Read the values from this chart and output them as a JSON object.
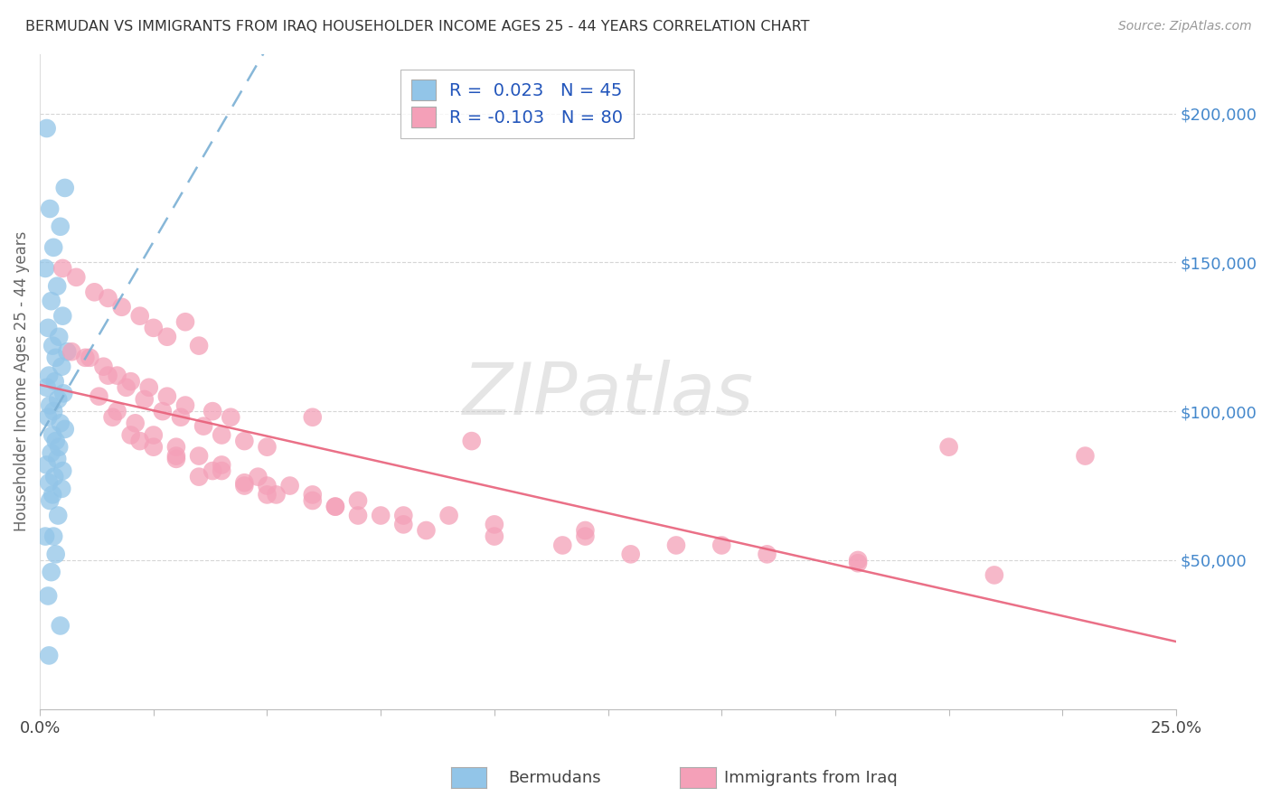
{
  "title": "BERMUDAN VS IMMIGRANTS FROM IRAQ HOUSEHOLDER INCOME AGES 25 - 44 YEARS CORRELATION CHART",
  "source": "Source: ZipAtlas.com",
  "ylabel": "Householder Income Ages 25 - 44 years",
  "right_yticks": [
    50000,
    100000,
    150000,
    200000
  ],
  "right_yticklabels": [
    "$50,000",
    "$100,000",
    "$150,000",
    "$200,000"
  ],
  "xlim": [
    0.0,
    25.0
  ],
  "ylim": [
    0,
    220000
  ],
  "bermuda_R": 0.023,
  "bermuda_N": 45,
  "iraq_R": -0.103,
  "iraq_N": 80,
  "bermuda_color": "#92C5E8",
  "iraq_color": "#F4A0B8",
  "bermuda_line_color": "#7AAFD4",
  "iraq_line_color": "#E8607A",
  "watermark": "ZIPatlas",
  "legend_bermuda_label": "Bermudans",
  "legend_iraq_label": "Immigrants from Iraq",
  "bermuda_x": [
    0.15,
    0.55,
    0.22,
    0.45,
    0.3,
    0.12,
    0.38,
    0.25,
    0.5,
    0.18,
    0.42,
    0.28,
    0.6,
    0.35,
    0.48,
    0.2,
    0.33,
    0.15,
    0.52,
    0.4,
    0.22,
    0.3,
    0.18,
    0.45,
    0.55,
    0.28,
    0.35,
    0.42,
    0.25,
    0.38,
    0.15,
    0.5,
    0.32,
    0.2,
    0.48,
    0.28,
    0.22,
    0.4,
    0.12,
    0.35,
    0.25,
    0.18,
    0.3,
    0.45,
    0.2
  ],
  "bermuda_y": [
    195000,
    175000,
    168000,
    162000,
    155000,
    148000,
    142000,
    137000,
    132000,
    128000,
    125000,
    122000,
    120000,
    118000,
    115000,
    112000,
    110000,
    108000,
    106000,
    104000,
    102000,
    100000,
    98000,
    96000,
    94000,
    92000,
    90000,
    88000,
    86000,
    84000,
    82000,
    80000,
    78000,
    76000,
    74000,
    72000,
    70000,
    65000,
    58000,
    52000,
    46000,
    38000,
    58000,
    28000,
    18000
  ],
  "iraq_x": [
    0.5,
    0.8,
    1.2,
    1.5,
    1.8,
    2.2,
    2.5,
    2.8,
    3.2,
    3.5,
    0.7,
    1.0,
    1.4,
    1.7,
    2.0,
    2.4,
    2.8,
    3.2,
    3.8,
    4.2,
    1.1,
    1.5,
    1.9,
    2.3,
    2.7,
    3.1,
    3.6,
    4.0,
    4.5,
    5.0,
    1.3,
    1.7,
    2.1,
    2.5,
    3.0,
    3.5,
    4.0,
    4.8,
    5.5,
    6.0,
    1.6,
    2.0,
    2.5,
    3.0,
    3.8,
    4.5,
    5.2,
    6.5,
    7.5,
    8.0,
    2.2,
    3.0,
    4.0,
    5.0,
    6.0,
    7.0,
    8.5,
    10.0,
    11.5,
    13.0,
    3.5,
    5.0,
    6.5,
    8.0,
    10.0,
    12.0,
    14.0,
    16.0,
    18.0,
    20.0,
    4.5,
    7.0,
    9.0,
    12.0,
    15.0,
    18.0,
    21.0,
    23.0,
    6.0,
    9.5
  ],
  "iraq_y": [
    148000,
    145000,
    140000,
    138000,
    135000,
    132000,
    128000,
    125000,
    130000,
    122000,
    120000,
    118000,
    115000,
    112000,
    110000,
    108000,
    105000,
    102000,
    100000,
    98000,
    118000,
    112000,
    108000,
    104000,
    100000,
    98000,
    95000,
    92000,
    90000,
    88000,
    105000,
    100000,
    96000,
    92000,
    88000,
    85000,
    82000,
    78000,
    75000,
    72000,
    98000,
    92000,
    88000,
    84000,
    80000,
    76000,
    72000,
    68000,
    65000,
    62000,
    90000,
    85000,
    80000,
    75000,
    70000,
    65000,
    60000,
    58000,
    55000,
    52000,
    78000,
    72000,
    68000,
    65000,
    62000,
    58000,
    55000,
    52000,
    49000,
    88000,
    75000,
    70000,
    65000,
    60000,
    55000,
    50000,
    45000,
    85000,
    98000,
    90000
  ]
}
